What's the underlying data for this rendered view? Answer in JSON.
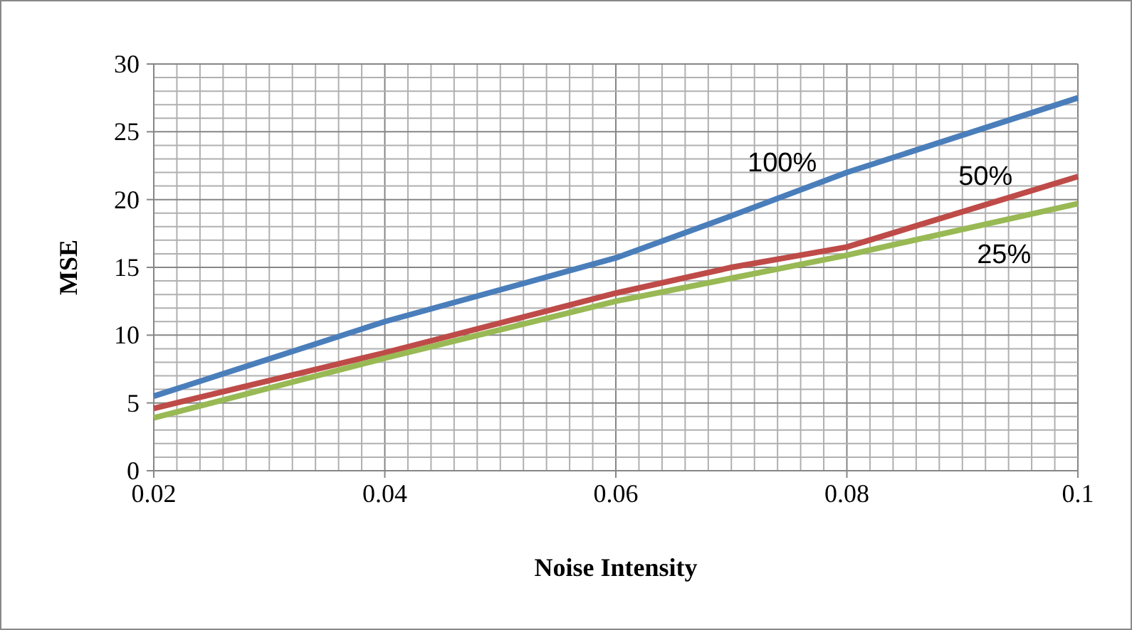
{
  "chart_data": {
    "type": "line",
    "xlabel": "Noise Intensity",
    "ylabel": "MSE",
    "x": [
      0.02,
      0.04,
      0.06,
      0.07,
      0.08,
      0.1
    ],
    "series": [
      {
        "name": "100%",
        "color": "#4a7ebb",
        "values": [
          5.5,
          11,
          15.7,
          18.8,
          22,
          27.5
        ]
      },
      {
        "name": "50%",
        "color": "#be4b48",
        "values": [
          4.6,
          8.7,
          13.1,
          15,
          16.5,
          21.7
        ]
      },
      {
        "name": "25%",
        "color": "#98b954",
        "values": [
          3.9,
          8.3,
          12.5,
          14.2,
          15.9,
          19.7
        ]
      }
    ],
    "xlim": [
      0.02,
      0.1
    ],
    "ylim": [
      0,
      30
    ],
    "xticks": [
      0.02,
      {
        "value": 0.022,
        "label": null
      },
      {
        "value": 0.024,
        "label": null
      },
      {
        "value": 0.026,
        "label": null
      },
      {
        "value": 0.028,
        "label": null
      },
      {
        "value": 0.03,
        "label": null
      },
      {
        "value": 0.032,
        "label": null
      },
      {
        "value": 0.034,
        "label": null
      },
      {
        "value": 0.036,
        "label": null
      },
      {
        "value": 0.038,
        "label": null
      },
      0.04,
      {
        "value": 0.042,
        "label": null
      },
      {
        "value": 0.044,
        "label": null
      },
      {
        "value": 0.046,
        "label": null
      },
      {
        "value": 0.048,
        "label": null
      },
      {
        "value": 0.05,
        "label": null
      },
      {
        "value": 0.052,
        "label": null
      },
      {
        "value": 0.054,
        "label": null
      },
      {
        "value": 0.056,
        "label": null
      },
      {
        "value": 0.058,
        "label": null
      },
      0.06,
      {
        "value": 0.062,
        "label": null
      },
      {
        "value": 0.064,
        "label": null
      },
      {
        "value": 0.066,
        "label": null
      },
      {
        "value": 0.068,
        "label": null
      },
      {
        "value": 0.07,
        "label": null
      },
      {
        "value": 0.072,
        "label": null
      },
      {
        "value": 0.074,
        "label": null
      },
      {
        "value": 0.076,
        "label": null
      },
      {
        "value": 0.078,
        "label": null
      },
      0.08,
      {
        "value": 0.082,
        "label": null
      },
      {
        "value": 0.084,
        "label": null
      },
      {
        "value": 0.086,
        "label": null
      },
      {
        "value": 0.088,
        "label": null
      },
      {
        "value": 0.09,
        "label": null
      },
      {
        "value": 0.092,
        "label": null
      },
      {
        "value": 0.094,
        "label": null
      },
      {
        "value": 0.096,
        "label": null
      },
      {
        "value": 0.098,
        "label": null
      },
      0.1
    ],
    "yticks": [
      0,
      {
        "value": 1,
        "label": null
      },
      {
        "value": 2,
        "label": null
      },
      {
        "value": 3,
        "label": null
      },
      {
        "value": 4,
        "label": null
      },
      5,
      {
        "value": 6,
        "label": null
      },
      {
        "value": 7,
        "label": null
      },
      {
        "value": 8,
        "label": null
      },
      {
        "value": 9,
        "label": null
      },
      10,
      {
        "value": 11,
        "label": null
      },
      {
        "value": 12,
        "label": null
      },
      {
        "value": 13,
        "label": null
      },
      {
        "value": 14,
        "label": null
      },
      15,
      {
        "value": 16,
        "label": null
      },
      {
        "value": 17,
        "label": null
      },
      {
        "value": 18,
        "label": null
      },
      {
        "value": 19,
        "label": null
      },
      20,
      {
        "value": 21,
        "label": null
      },
      {
        "value": 22,
        "label": null
      },
      {
        "value": 23,
        "label": null
      },
      {
        "value": 24,
        "label": null
      },
      25,
      {
        "value": 26,
        "label": null
      },
      {
        "value": 27,
        "label": null
      },
      {
        "value": 28,
        "label": null
      },
      {
        "value": 29,
        "label": null
      },
      30
    ],
    "grid": true,
    "marker": "none",
    "line_style": "solid"
  }
}
